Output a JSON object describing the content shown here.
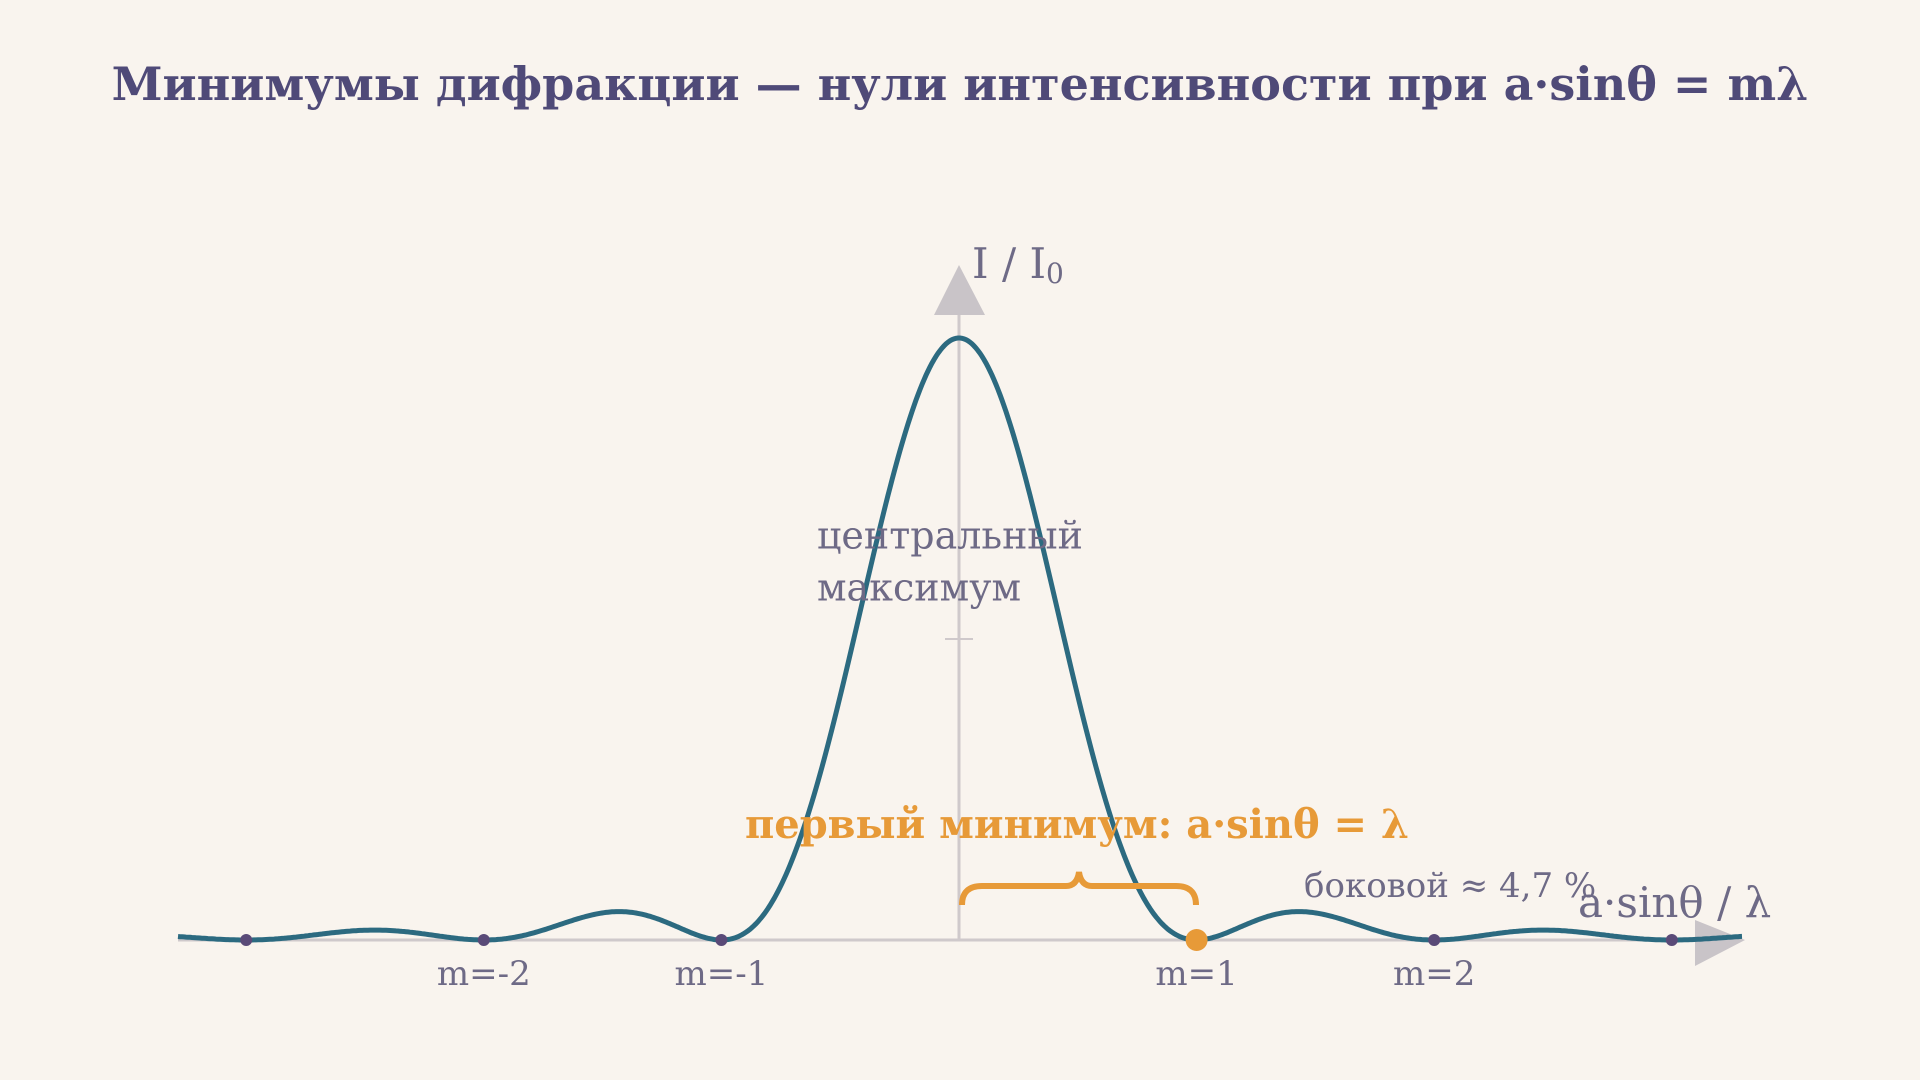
{
  "title": "Минимумы дифракции — нули интенсивности при a·sinθ = mλ",
  "y_axis_label": {
    "main": "I / I",
    "sub": "0"
  },
  "x_axis_label": "a·sinθ / λ",
  "central_label": [
    "центральный",
    "максимум"
  ],
  "first_minimum_label": "первый минимум: a·sinθ = λ",
  "side_lobe_label": "боковой  ≈  4,7 %",
  "minima_labels": [
    "m=-2",
    "m=-1",
    "m=1",
    "m=2"
  ]
}
